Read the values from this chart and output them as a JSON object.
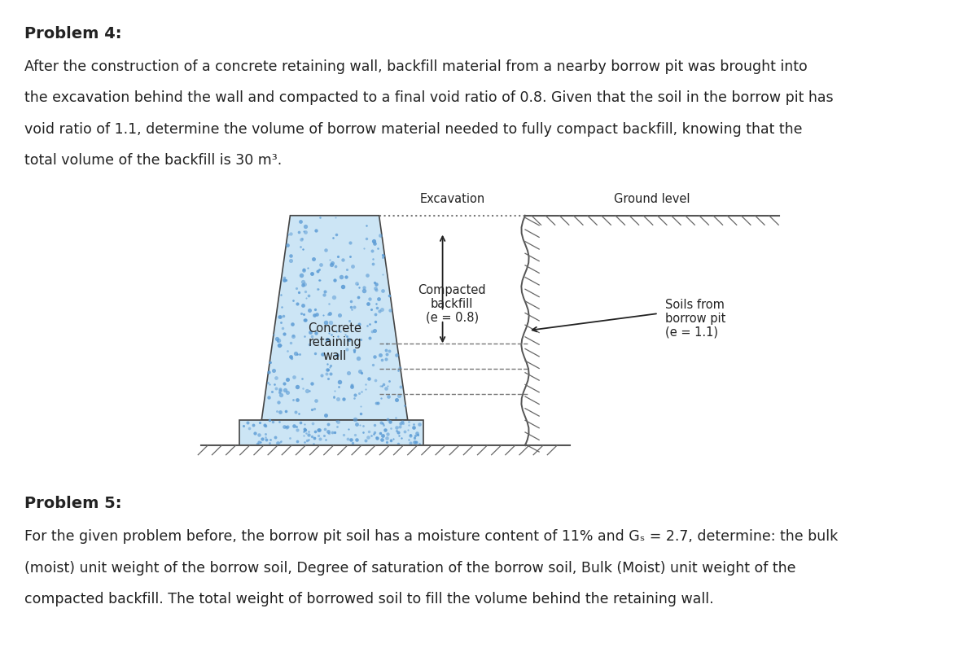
{
  "bg_color": "#ffffff",
  "problem4_title": "Problem 4:",
  "problem4_line1": "After the construction of a concrete retaining wall, backfill material from a nearby borrow pit was brought into",
  "problem4_line2": "the excavation behind the wall and compacted to a final void ratio of 0.8. Given that the soil in the borrow pit has",
  "problem4_line3": "void ratio of 1.1, determine the volume of borrow material needed to fully compact backfill, knowing that the",
  "problem4_line4": "total volume of the backfill is 30 m³.",
  "problem5_title": "Problem 5:",
  "problem5_line1": "For the given problem before, the borrow pit soil has a moisture content of 11% and Gₛ = 2.7, determine: the bulk",
  "problem5_line2": "(moist) unit weight of the borrow soil, Degree of saturation of the borrow soil, Bulk (Moist) unit weight of the",
  "problem5_line3": "compacted backfill. The total weight of borrowed soil to fill the volume behind the retaining wall.",
  "label_excavation": "Excavation",
  "label_ground": "Ground level",
  "label_compacted1": "Compacted",
  "label_compacted2": "backfill",
  "label_compacted3": "(e = 0.8)",
  "label_concrete1": "Concrete",
  "label_concrete2": "retaining",
  "label_concrete3": "wall",
  "label_soils1": "Soils from",
  "label_soils2": "borrow pit",
  "label_soils3": "(e = 1.1)",
  "concrete_fill_color": "#cce5f5",
  "concrete_dot_color": "#5b9bd5",
  "wall_outline_color": "#444444",
  "line_color": "#555555",
  "dashed_color": "#777777",
  "arrow_color": "#222222",
  "text_color": "#222222",
  "hatch_color": "#666666",
  "title_fontsize": 14,
  "body_fontsize": 12.5,
  "label_fontsize": 10.5
}
